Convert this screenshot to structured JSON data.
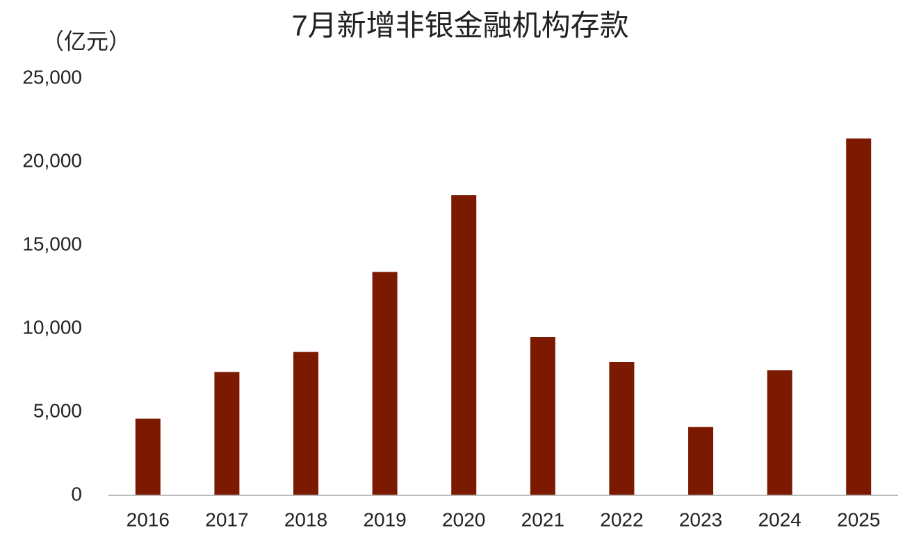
{
  "chart_data": {
    "type": "bar",
    "title": "7月新增非银金融机构存款",
    "y_label": "（亿元）",
    "categories": [
      "2016",
      "2017",
      "2018",
      "2019",
      "2020",
      "2021",
      "2022",
      "2023",
      "2024",
      "2025"
    ],
    "values": [
      4600,
      7400,
      8600,
      13400,
      18000,
      9500,
      8000,
      4100,
      7500,
      21400
    ],
    "color": "#7b1a00",
    "ylim": [
      0,
      25000
    ],
    "yticks": [
      0,
      {
        "value": 5000,
        "label": "5,000"
      },
      {
        "value": 10000,
        "label": "10,000"
      },
      {
        "value": 15000,
        "label": "15,000"
      },
      {
        "value": 20000,
        "label": "20,000"
      },
      {
        "value": 25000,
        "label": "25,000"
      }
    ],
    "grid": false
  }
}
